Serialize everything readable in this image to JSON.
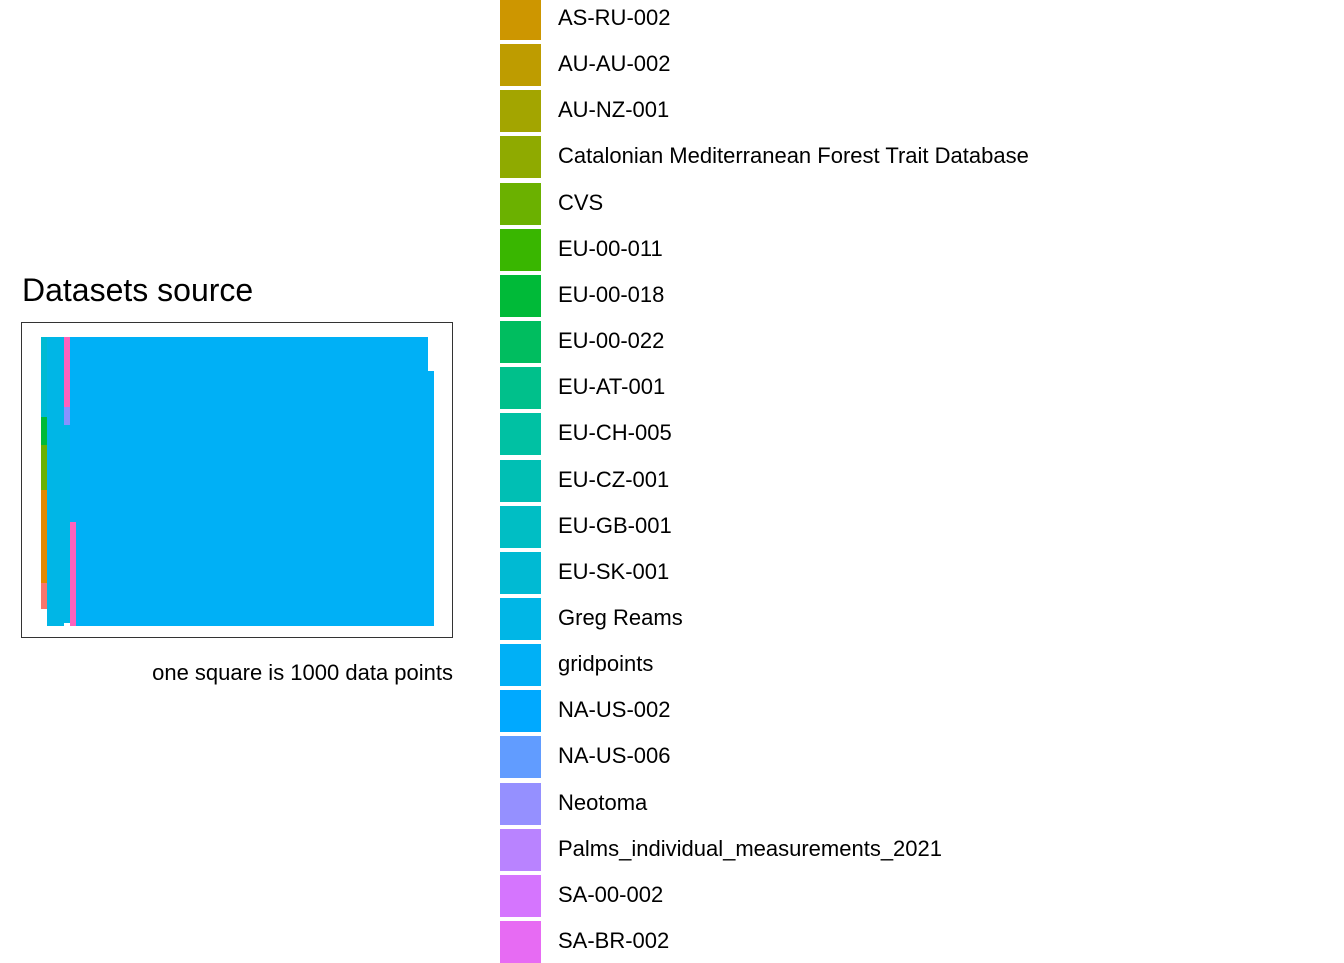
{
  "chart_data": {
    "type": "waffle",
    "title": "Datasets source",
    "caption": "one square is 1000 data points",
    "legend_position": "right",
    "grid": false,
    "legend": [
      {
        "name": "AS-RU-002",
        "color": "#CD9600"
      },
      {
        "name": "AU-AU-002",
        "color": "#BE9C00"
      },
      {
        "name": "AU-NZ-001",
        "color": "#A3A500"
      },
      {
        "name": "Catalonian Mediterranean Forest Trait Database",
        "color": "#8FAA00"
      },
      {
        "name": "CVS",
        "color": "#6BB100"
      },
      {
        "name": "EU-00-011",
        "color": "#39B600"
      },
      {
        "name": "EU-00-018",
        "color": "#00BA38"
      },
      {
        "name": "EU-00-022",
        "color": "#00BD5F"
      },
      {
        "name": "EU-AT-001",
        "color": "#00C08B"
      },
      {
        "name": "EU-CH-005",
        "color": "#00C1A3"
      },
      {
        "name": "EU-CZ-001",
        "color": "#00BFB4"
      },
      {
        "name": "EU-GB-001",
        "color": "#00BEC4"
      },
      {
        "name": "EU-SK-001",
        "color": "#00BAD3"
      },
      {
        "name": "Greg Reams",
        "color": "#00B6E6"
      },
      {
        "name": "gridpoints",
        "color": "#00B0F6"
      },
      {
        "name": "NA-US-002",
        "color": "#00A9FF"
      },
      {
        "name": "NA-US-006",
        "color": "#619CFF"
      },
      {
        "name": "Neotoma",
        "color": "#9590FF"
      },
      {
        "name": "Palms_individual_measurements_2021",
        "color": "#B983FF"
      },
      {
        "name": "SA-00-002",
        "color": "#D575FE"
      },
      {
        "name": "SA-BR-002",
        "color": "#E76BF3"
      }
    ],
    "colors": {
      "red": "#F8766D",
      "orange": "#E38900",
      "pink": "#FF62BC",
      "pink2": "#FF6C91",
      "blue_purple": "#8792FF"
    }
  }
}
